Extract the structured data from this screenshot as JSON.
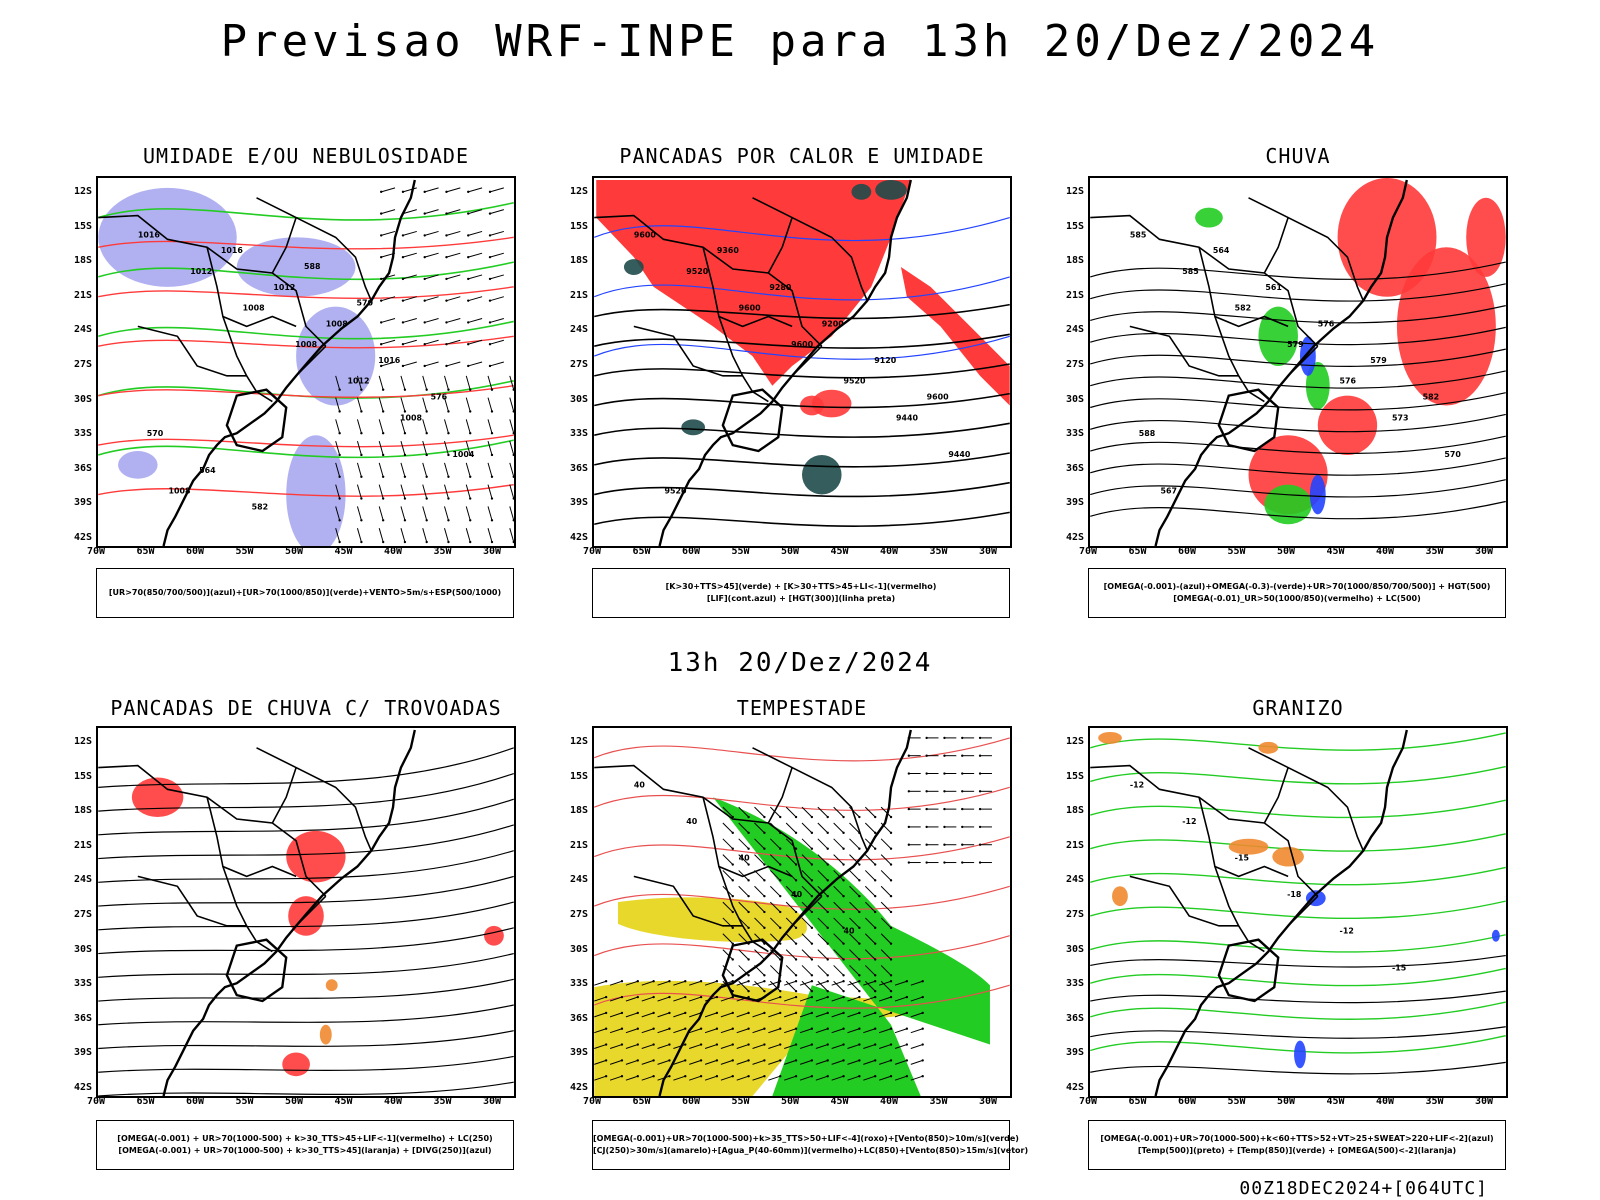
{
  "title": "Previsao WRF-INPE  para 13h 20/Dez/2024",
  "mid_time": "13h 20/Dez/2024",
  "footer": "00Z18DEC2024+[064UTC]",
  "lat_labels": [
    "12S",
    "15S",
    "18S",
    "21S",
    "24S",
    "27S",
    "30S",
    "33S",
    "36S",
    "39S",
    "42S"
  ],
  "lon_labels": [
    "70W",
    "65W",
    "60W",
    "55W",
    "50W",
    "45W",
    "40W",
    "35W",
    "30W"
  ],
  "colors": {
    "humidity_blue": "#a8a8f0",
    "green": "#22cc22",
    "red": "#ff3a3a",
    "blue": "#2244ff",
    "dark_teal": "#1f4b4b",
    "yellow": "#e8d82c",
    "orange": "#f08a30"
  },
  "panels": [
    {
      "title": "UMIDADE E/OU NEBULOSIDADE",
      "legend": [
        "[UR>70(850/700/500)](azul)+[UR>70(1000/850)](verde)+VENTO>5m/s+ESP(500/1000)"
      ],
      "contour_labels": [
        "1016",
        "1012",
        "1008",
        "1008",
        "1012",
        "1008",
        "1004",
        "1008",
        "1016",
        "1012",
        "1008",
        "1016",
        "576",
        "570",
        "564",
        "582",
        "588",
        "570"
      ]
    },
    {
      "title": "PANCADAS POR CALOR E UMIDADE",
      "legend": [
        "[K>30+TTS>45](verde) + [K>30+TTS>45+LI<-1](vermelho)",
        "[LIF](cont.azul) + [HGT(300)](linha preta)"
      ],
      "contour_labels": [
        "9600",
        "9520",
        "9600",
        "9600",
        "9520",
        "9440",
        "9440",
        "9520",
        "9360",
        "9280",
        "9200",
        "9120",
        "9600"
      ]
    },
    {
      "title": "CHUVA",
      "legend": [
        "[OMEGA(-0.001)-(azul)+OMEGA(-0.3)-(verde)+UR>70(1000/850/700/500)] + HGT(500)",
        "[OMEGA(-0.01)_UR>50(1000/850)(vermelho) + LC(500)"
      ],
      "contour_labels": [
        "585",
        "585",
        "582",
        "579",
        "576",
        "573",
        "570",
        "567",
        "564",
        "561",
        "576",
        "579",
        "582",
        "588"
      ]
    },
    {
      "title": "PANCADAS DE CHUVA C/ TROVOADAS",
      "legend": [
        "[OMEGA(-0.001) + UR>70(1000-500) + k>30_TTS>45+LIF<-1](vermelho) + LC(250)",
        "[OMEGA(-0.001) + UR>70(1000-500) + k>30_TTS>45](laranja) + [DIVG(250)](azul)"
      ],
      "contour_labels": []
    },
    {
      "title": "TEMPESTADE",
      "legend": [
        "[OMEGA(-0.001)+UR>70(1000-500)+k>35_TTS>50+LIF<-4](roxo)+[Vento(850)>10m/s](verde)",
        "[CJ(250)>30m/s](amarelo)+[Agua_P(40-60mm)](vermelho)+LC(850)+[Vento(850)>15m/s](vetor)"
      ],
      "contour_labels": [
        "40",
        "40",
        "40",
        "40",
        "40"
      ]
    },
    {
      "title": "GRANIZO",
      "legend": [
        "[OMEGA(-0.001)+UR>70(1000-500)+k<60+TTS>52+VT>25+SWEAT>220+LIF<-2](azul)",
        "[Temp(500)](preto) + [Temp(850)](verde) + [OMEGA(500)<-2](laranja)"
      ],
      "contour_labels": [
        "-12",
        "-12",
        "-15",
        "-18",
        "-12",
        "-15"
      ]
    }
  ]
}
